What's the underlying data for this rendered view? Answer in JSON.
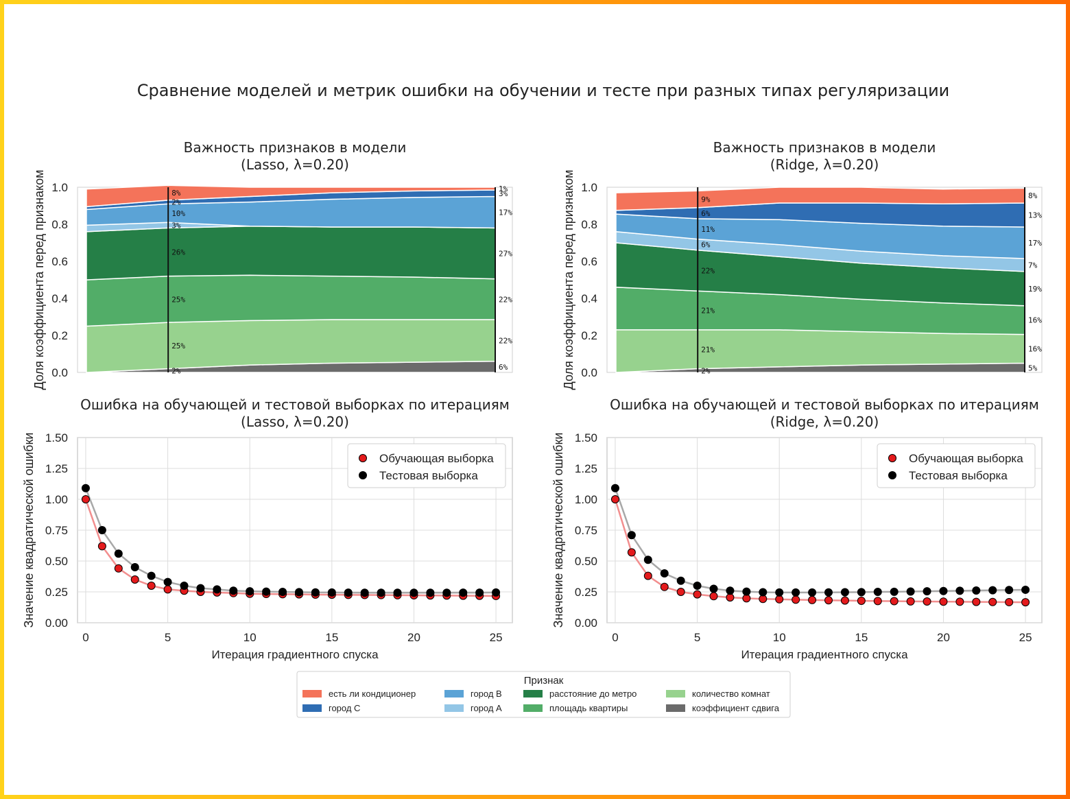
{
  "title": "Сравнение моделей и метрик ошибки на обучении и тесте при разных типах регуляризации",
  "colors": {
    "frame_start": "#ffd21a",
    "frame_end": "#ff6a00",
    "features": [
      "#f4735a",
      "#2f6db3",
      "#5ba3d6",
      "#93c6e6",
      "#257f47",
      "#52ad68",
      "#97d28e",
      "#6b6b6b"
    ],
    "train": "#e41a1c",
    "test": "#000000",
    "train_line": "#f28e8e",
    "test_line": "#a8a8a8"
  },
  "legend": {
    "title": "Признак",
    "items": [
      "есть ли кондиционер",
      "город C",
      "город B",
      "город A",
      "расстояние до метро",
      "площадь квартиры",
      "количество комнат",
      "коэффициент сдвига"
    ]
  },
  "chart_data": [
    {
      "type": "area",
      "title": "Важность признаков в модели\n(Lasso, λ=0.20)",
      "xlabel": "",
      "ylabel": "Доля коэффициента перед признаком",
      "ylim": [
        0,
        1.0
      ],
      "yticks": [
        "0.0",
        "0.2",
        "0.4",
        "0.6",
        "0.8",
        "1.0"
      ],
      "x": [
        0,
        5,
        10,
        15,
        20,
        25
      ],
      "marker_iteration": 5,
      "series": [
        {
          "name": "коэффициент сдвига",
          "values": [
            0.0,
            0.02,
            0.04,
            0.05,
            0.055,
            0.06
          ]
        },
        {
          "name": "количество комнат",
          "values": [
            0.25,
            0.25,
            0.24,
            0.235,
            0.23,
            0.225
          ]
        },
        {
          "name": "площадь квартиры",
          "values": [
            0.25,
            0.25,
            0.245,
            0.235,
            0.23,
            0.22
          ]
        },
        {
          "name": "расстояние до метро",
          "values": [
            0.26,
            0.26,
            0.265,
            0.265,
            0.27,
            0.275
          ]
        },
        {
          "name": "город A",
          "values": [
            0.035,
            0.03,
            0.0,
            0.0,
            0.0,
            0.0
          ]
        },
        {
          "name": "город B",
          "values": [
            0.085,
            0.1,
            0.13,
            0.15,
            0.16,
            0.17
          ]
        },
        {
          "name": "город C",
          "values": [
            0.015,
            0.02,
            0.03,
            0.035,
            0.035,
            0.035
          ]
        },
        {
          "name": "есть ли кондиционер",
          "values": [
            0.095,
            0.08,
            0.05,
            0.03,
            0.02,
            0.015
          ]
        }
      ],
      "labels_left": [
        "2%",
        "25%",
        "25%",
        "26%",
        "3%",
        "10%",
        "2%",
        "8%"
      ],
      "labels_right": [
        "6%",
        "22%",
        "22%",
        "27%",
        "",
        "17%",
        "3%",
        "1%"
      ]
    },
    {
      "type": "area",
      "title": "Важность признаков в модели\n(Ridge, λ=0.20)",
      "xlabel": "",
      "ylabel": "Доля коэффициента перед признаком",
      "ylim": [
        0,
        1.0
      ],
      "yticks": [
        "0.0",
        "0.2",
        "0.4",
        "0.6",
        "0.8",
        "1.0"
      ],
      "x": [
        0,
        5,
        10,
        15,
        20,
        25
      ],
      "marker_iteration": 5,
      "series": [
        {
          "name": "коэффициент сдвига",
          "values": [
            0.0,
            0.02,
            0.03,
            0.04,
            0.045,
            0.05
          ]
        },
        {
          "name": "количество комнат",
          "values": [
            0.23,
            0.21,
            0.2,
            0.18,
            0.165,
            0.155
          ]
        },
        {
          "name": "площадь квартиры",
          "values": [
            0.23,
            0.21,
            0.19,
            0.175,
            0.165,
            0.155
          ]
        },
        {
          "name": "расстояние до метро",
          "values": [
            0.24,
            0.22,
            0.205,
            0.195,
            0.19,
            0.185
          ]
        },
        {
          "name": "город A",
          "values": [
            0.06,
            0.06,
            0.065,
            0.065,
            0.065,
            0.07
          ]
        },
        {
          "name": "город B",
          "values": [
            0.095,
            0.11,
            0.135,
            0.15,
            0.16,
            0.17
          ]
        },
        {
          "name": "город C",
          "values": [
            0.02,
            0.06,
            0.09,
            0.11,
            0.12,
            0.13
          ]
        },
        {
          "name": "есть ли кондиционер",
          "values": [
            0.095,
            0.09,
            0.085,
            0.085,
            0.08,
            0.08
          ]
        }
      ],
      "labels_left": [
        "2%",
        "21%",
        "21%",
        "22%",
        "6%",
        "11%",
        "6%",
        "9%"
      ],
      "labels_right": [
        "5%",
        "16%",
        "16%",
        "19%",
        "7%",
        "17%",
        "13%",
        "8%"
      ]
    },
    {
      "type": "scatter",
      "title": "Ошибка на обучающей и тестовой выборках по итерациям\n(Lasso, λ=0.20)",
      "xlabel": "Итерация градиентного спуска",
      "ylabel": "Значение квадратической ошибки",
      "xlim": [
        -0.5,
        26
      ],
      "ylim": [
        0,
        1.5
      ],
      "xticks": [
        "0",
        "5",
        "10",
        "15",
        "20",
        "25"
      ],
      "yticks": [
        "0.00",
        "0.25",
        "0.50",
        "0.75",
        "1.00",
        "1.25",
        "1.50"
      ],
      "legend_position": "upper right",
      "x": [
        0,
        1,
        2,
        3,
        4,
        5,
        6,
        7,
        8,
        9,
        10,
        11,
        12,
        13,
        14,
        15,
        16,
        17,
        18,
        19,
        20,
        21,
        22,
        23,
        24,
        25
      ],
      "series": [
        {
          "name": "Обучающая выборка",
          "values": [
            1.0,
            0.62,
            0.44,
            0.35,
            0.3,
            0.27,
            0.26,
            0.25,
            0.245,
            0.24,
            0.235,
            0.233,
            0.231,
            0.23,
            0.228,
            0.227,
            0.226,
            0.225,
            0.224,
            0.223,
            0.222,
            0.221,
            0.22,
            0.219,
            0.218,
            0.217
          ]
        },
        {
          "name": "Тестовая выборка",
          "values": [
            1.09,
            0.75,
            0.56,
            0.45,
            0.38,
            0.33,
            0.3,
            0.28,
            0.27,
            0.26,
            0.255,
            0.252,
            0.25,
            0.248,
            0.246,
            0.245,
            0.244,
            0.243,
            0.243,
            0.243,
            0.243,
            0.243,
            0.243,
            0.244,
            0.244,
            0.245
          ]
        }
      ]
    },
    {
      "type": "scatter",
      "title": "Ошибка на обучающей и тестовой выборках по итерациям\n(Ridge, λ=0.20)",
      "xlabel": "Итерация градиентного спуска",
      "ylabel": "Значение квадратической ошибки",
      "xlim": [
        -0.5,
        26
      ],
      "ylim": [
        0,
        1.5
      ],
      "xticks": [
        "0",
        "5",
        "10",
        "15",
        "20",
        "25"
      ],
      "yticks": [
        "0.00",
        "0.25",
        "0.50",
        "0.75",
        "1.00",
        "1.25",
        "1.50"
      ],
      "legend_position": "upper right",
      "x": [
        0,
        1,
        2,
        3,
        4,
        5,
        6,
        7,
        8,
        9,
        10,
        11,
        12,
        13,
        14,
        15,
        16,
        17,
        18,
        19,
        20,
        21,
        22,
        23,
        24,
        25
      ],
      "series": [
        {
          "name": "Обучающая выборка",
          "values": [
            1.0,
            0.57,
            0.38,
            0.29,
            0.25,
            0.23,
            0.215,
            0.205,
            0.198,
            0.193,
            0.19,
            0.187,
            0.184,
            0.182,
            0.18,
            0.178,
            0.176,
            0.175,
            0.173,
            0.172,
            0.171,
            0.17,
            0.169,
            0.168,
            0.167,
            0.166
          ]
        },
        {
          "name": "Тестовая выборка",
          "values": [
            1.09,
            0.71,
            0.51,
            0.4,
            0.34,
            0.3,
            0.275,
            0.26,
            0.252,
            0.247,
            0.245,
            0.245,
            0.245,
            0.246,
            0.247,
            0.248,
            0.25,
            0.251,
            0.253,
            0.255,
            0.257,
            0.259,
            0.261,
            0.263,
            0.265,
            0.267
          ]
        }
      ]
    }
  ]
}
